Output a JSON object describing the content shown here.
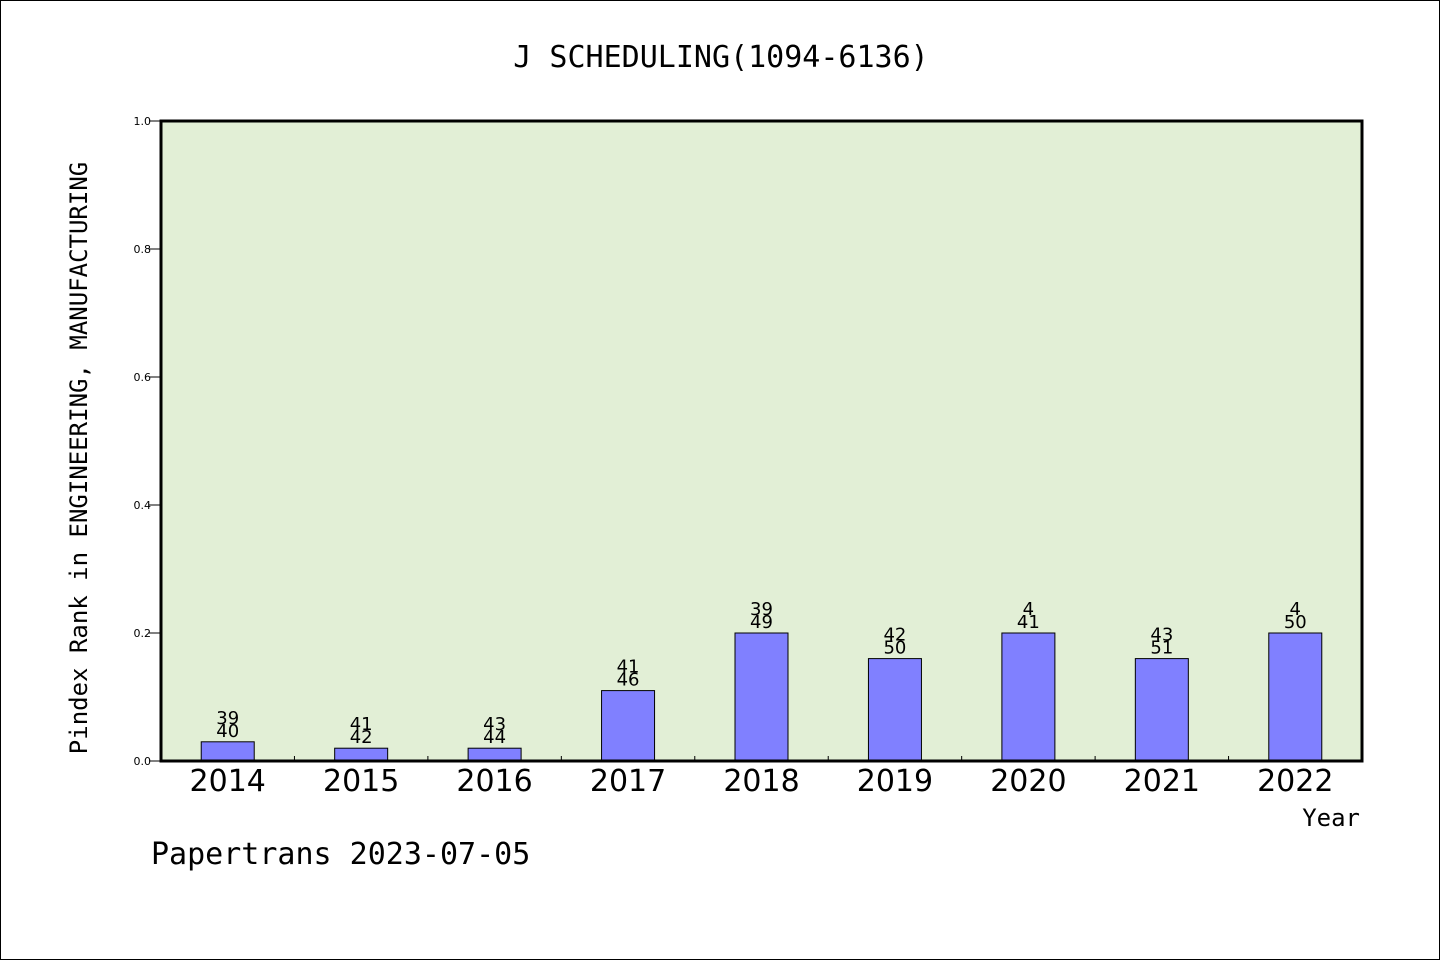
{
  "colors": {
    "plot_background": "#e2efd6",
    "bar_fill": "#8080ff",
    "bar_stroke": "#000000",
    "axis": "#000000"
  },
  "chart_data": {
    "type": "bar",
    "title": "J SCHEDULING(1094-6136)",
    "xlabel": "Year",
    "ylabel": "Pindex Rank in ENGINEERING, MANUFACTURING",
    "ylim": [
      0,
      1.0
    ],
    "yticks": [
      "0.0",
      "0.2",
      "0.4",
      "0.6",
      "0.8",
      "1.0"
    ],
    "categories": [
      "2014",
      "2015",
      "2016",
      "2017",
      "2018",
      "2019",
      "2020",
      "2021",
      "2022"
    ],
    "values": [
      0.03,
      0.02,
      0.02,
      0.11,
      0.2,
      0.16,
      0.2,
      0.16,
      0.2
    ],
    "label_top": [
      "39",
      "41",
      "43",
      "41",
      "39",
      "42",
      "4",
      "43",
      "4"
    ],
    "label_bottom": [
      "40",
      "42",
      "44",
      "46",
      "49",
      "50",
      "41",
      "51",
      "50"
    ],
    "grid": false,
    "legend": "none"
  },
  "footer": "Papertrans 2023-07-05"
}
